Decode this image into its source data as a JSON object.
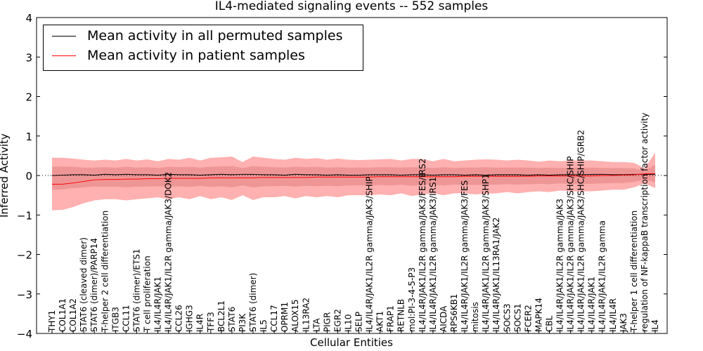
{
  "chart_data": {
    "type": "line",
    "title": "IL4-mediated signaling events -- 552 samples",
    "xlabel": "Cellular Entities",
    "ylabel": "Inferred Activity",
    "ylim": [
      -4,
      4
    ],
    "yticks": [
      -4,
      -3,
      -2,
      -1,
      0,
      1,
      2,
      3,
      4
    ],
    "legend": {
      "placement": "top-left"
    },
    "categories": [
      "THY1",
      "COL1A1",
      "COL1A2",
      "STAT6 (cleaved dimer)",
      "STAT6 (dimer)/PARP14",
      "T-helper 2 cell differentiation",
      "ITGB3",
      "CCL11",
      "STAT6 (dimer)/ETS1",
      "T cell proliferation",
      "IL4/IL4R/JAK1",
      "IL4/IL4R/JAK1/IL2R gamma/JAK3/DOK2",
      "CCL26",
      "IGHG3",
      "IL4R",
      "TFF3",
      "BCL2L1",
      "STAT6",
      "PI3K",
      "STAT6 (dimer)",
      "IL5",
      "CCL17",
      "OPRM1",
      "ALOX15",
      "IL13RA2",
      "LTA",
      "PIGR",
      "EGR2",
      "IL10",
      "SELP",
      "IL4/IL4R/JAK1/IL2R gamma/JAK3/SHIP",
      "AKT1",
      "FRAP1",
      "RETNLB",
      "mol:PI-3-4-5-P3",
      "IL4/IL4R/JAK1/IL2R gamma/JAK3/FES/IRS2",
      "IL4/IL4R/JAK1/IL2R gamma/JAK3/IRS1",
      "AICDA",
      "RPS6KB1",
      "IL4/IL4R/JAK1/IL2R gamma/JAK3/FES",
      "mitosis",
      "IL4/IL4R/JAK1/IL2R gamma/JAK3/SHP1",
      "IL4/IL4R/JAK1/IL13RA1/JAK2",
      "SOCS3",
      "SOCS1",
      "FCER2",
      "MAPK14",
      "CBL",
      "IL4/IL4R/JAK1/IL2R gamma/JAK3",
      "IL4/IL4R/JAK1/IL2R gamma/JAK3/SHC/SHIP",
      "IL4/IL4R/JAK1/IL2R gamma/JAK3/SHC/SHIP/GRB2",
      "IL4/IL4R/JAK1",
      "IL4/IL4R/JAK1/IL2R gamma",
      "IL4/IL4R",
      "JAK3",
      "T-helper 1 cell differentiation",
      "regulation of NF-kappaB transcription factor activity",
      "IL4"
    ],
    "series": [
      {
        "name": "Mean activity in all permuted samples",
        "color": "#000000",
        "values": [
          0.0,
          0.01,
          0.02,
          0.02,
          0.01,
          0.03,
          0.02,
          0.03,
          0.02,
          0.02,
          0.01,
          0.03,
          0.02,
          0.02,
          0.01,
          0.02,
          0.03,
          0.02,
          0.03,
          0.03,
          0.02,
          0.02,
          0.01,
          0.03,
          0.02,
          0.02,
          0.01,
          0.02,
          0.01,
          0.01,
          0.02,
          0.02,
          0.02,
          0.01,
          0.02,
          0.02,
          0.01,
          0.02,
          0.02,
          0.01,
          0.02,
          0.01,
          0.02,
          0.02,
          0.02,
          0.01,
          0.02,
          0.01,
          0.02,
          0.02,
          0.02,
          0.03,
          0.03,
          0.02,
          0.02,
          0.03,
          0.03,
          0.03
        ]
      },
      {
        "name": "Mean activity in patient samples",
        "color": "#ff0000",
        "values": [
          -0.22,
          -0.22,
          -0.19,
          -0.15,
          -0.11,
          -0.1,
          -0.1,
          -0.09,
          -0.09,
          -0.08,
          -0.08,
          -0.07,
          -0.07,
          -0.07,
          -0.07,
          -0.06,
          -0.06,
          -0.06,
          -0.06,
          -0.06,
          -0.05,
          -0.05,
          -0.05,
          -0.05,
          -0.05,
          -0.04,
          -0.04,
          -0.04,
          -0.04,
          -0.04,
          -0.04,
          -0.03,
          -0.03,
          -0.03,
          -0.03,
          -0.03,
          -0.03,
          -0.03,
          -0.03,
          -0.02,
          -0.02,
          -0.02,
          -0.02,
          -0.02,
          -0.02,
          -0.02,
          -0.01,
          -0.01,
          -0.01,
          -0.01,
          -0.01,
          -0.01,
          0.0,
          0.0,
          0.01,
          0.02,
          0.04,
          0.05
        ]
      }
    ],
    "band_upper": [
      0.45,
      0.45,
      0.43,
      0.4,
      0.38,
      0.4,
      0.38,
      0.42,
      0.38,
      0.41,
      0.36,
      0.42,
      0.4,
      0.45,
      0.38,
      0.45,
      0.46,
      0.48,
      0.34,
      0.48,
      0.45,
      0.42,
      0.4,
      0.45,
      0.42,
      0.44,
      0.4,
      0.43,
      0.4,
      0.39,
      0.4,
      0.41,
      0.42,
      0.38,
      0.42,
      0.42,
      0.36,
      0.42,
      0.36,
      0.38,
      0.4,
      0.41,
      0.4,
      0.38,
      0.4,
      0.38,
      0.35,
      0.38,
      0.36,
      0.38,
      0.38,
      0.38,
      0.36,
      0.34,
      0.34,
      0.32,
      0.18,
      0.58
    ],
    "band_lower": [
      -0.88,
      -0.87,
      -0.8,
      -0.7,
      -0.63,
      -0.6,
      -0.6,
      -0.63,
      -0.6,
      -0.58,
      -0.55,
      -0.6,
      -0.55,
      -0.6,
      -0.52,
      -0.6,
      -0.55,
      -0.62,
      -0.5,
      -0.62,
      -0.55,
      -0.55,
      -0.52,
      -0.58,
      -0.52,
      -0.55,
      -0.52,
      -0.55,
      -0.5,
      -0.5,
      -0.5,
      -0.48,
      -0.5,
      -0.45,
      -0.52,
      -0.48,
      -0.45,
      -0.5,
      -0.45,
      -0.45,
      -0.48,
      -0.46,
      -0.45,
      -0.42,
      -0.45,
      -0.42,
      -0.4,
      -0.42,
      -0.38,
      -0.4,
      -0.4,
      -0.4,
      -0.38,
      -0.36,
      -0.36,
      -0.3,
      -0.2,
      -0.32
    ],
    "band_inner_upper": [
      0.22,
      0.23,
      0.22,
      0.2,
      0.2,
      0.21,
      0.2,
      0.22,
      0.2,
      0.21,
      0.19,
      0.22,
      0.21,
      0.22,
      0.2,
      0.22,
      0.23,
      0.24,
      0.19,
      0.24,
      0.22,
      0.21,
      0.2,
      0.22,
      0.21,
      0.22,
      0.2,
      0.21,
      0.2,
      0.2,
      0.2,
      0.21,
      0.21,
      0.2,
      0.21,
      0.21,
      0.19,
      0.21,
      0.19,
      0.2,
      0.2,
      0.21,
      0.2,
      0.2,
      0.2,
      0.2,
      0.19,
      0.2,
      0.19,
      0.2,
      0.2,
      0.2,
      0.19,
      0.19,
      0.19,
      0.18,
      0.12,
      0.28
    ],
    "band_inner_lower": [
      -0.36,
      -0.35,
      -0.32,
      -0.3,
      -0.28,
      -0.28,
      -0.28,
      -0.3,
      -0.28,
      -0.28,
      -0.27,
      -0.29,
      -0.27,
      -0.29,
      -0.26,
      -0.29,
      -0.27,
      -0.3,
      -0.25,
      -0.3,
      -0.27,
      -0.27,
      -0.26,
      -0.28,
      -0.26,
      -0.27,
      -0.26,
      -0.27,
      -0.25,
      -0.25,
      -0.25,
      -0.24,
      -0.25,
      -0.23,
      -0.26,
      -0.24,
      -0.23,
      -0.25,
      -0.23,
      -0.23,
      -0.24,
      -0.23,
      -0.23,
      -0.22,
      -0.23,
      -0.22,
      -0.21,
      -0.22,
      -0.2,
      -0.21,
      -0.21,
      -0.21,
      -0.2,
      -0.19,
      -0.19,
      -0.16,
      -0.11,
      -0.17
    ],
    "colors": {
      "band_outer": "#ffb0b0",
      "band_inner": "#e88e8e",
      "zero_line": "#000000"
    }
  }
}
